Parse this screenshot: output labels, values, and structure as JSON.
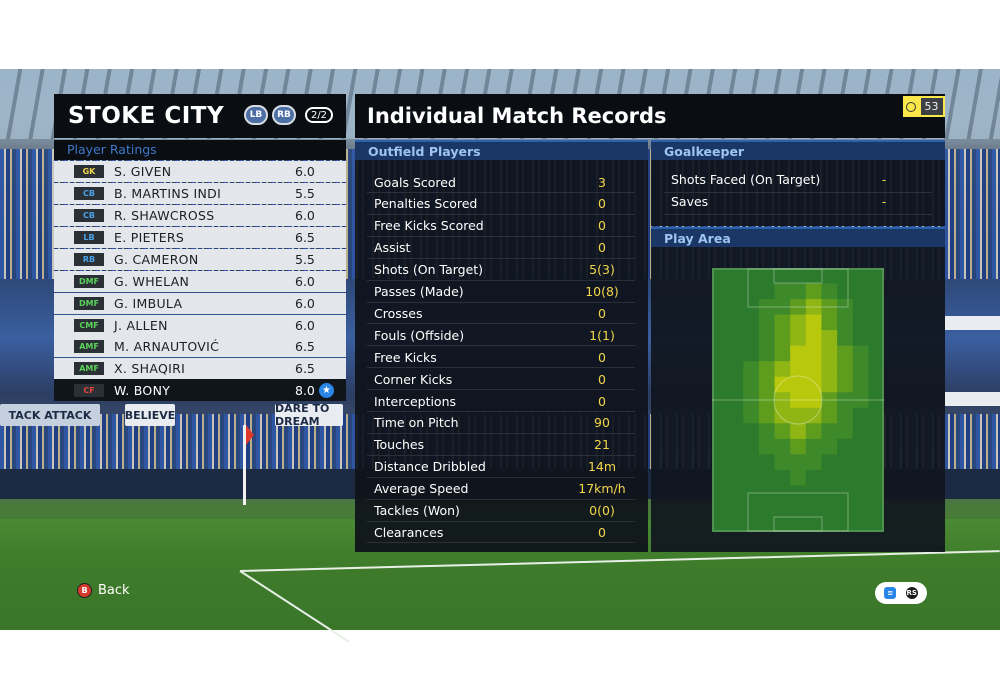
{
  "team": {
    "name": "STOKE CITY",
    "lb_button": "LB",
    "rb_button": "RB",
    "page": "2/2"
  },
  "ratings_header": "Player Ratings",
  "players": [
    {
      "pos": "GK",
      "pos_color": "#f2d64a",
      "name": "S. GIVEN",
      "rating": "6.0",
      "star": false
    },
    {
      "pos": "CB",
      "pos_color": "#4aa3e8",
      "name": "B. MARTINS INDI",
      "rating": "5.5",
      "star": false
    },
    {
      "pos": "CB",
      "pos_color": "#4aa3e8",
      "name": "R. SHAWCROSS",
      "rating": "6.0",
      "star": false
    },
    {
      "pos": "LB",
      "pos_color": "#4aa3e8",
      "name": "E. PIETERS",
      "rating": "6.5",
      "star": false
    },
    {
      "pos": "RB",
      "pos_color": "#4aa3e8",
      "name": "G. CAMERON",
      "rating": "5.5",
      "star": false
    },
    {
      "pos": "DMF",
      "pos_color": "#59d35a",
      "name": "G. WHELAN",
      "rating": "6.0",
      "star": false
    },
    {
      "pos": "DMF",
      "pos_color": "#59d35a",
      "name": "G. IMBULA",
      "rating": "6.0",
      "star": false
    },
    {
      "pos": "CMF",
      "pos_color": "#59d35a",
      "name": "J. ALLEN",
      "rating": "6.0",
      "star": false
    },
    {
      "pos": "AMF",
      "pos_color": "#59d35a",
      "name": "M. ARNAUTOVIĆ",
      "rating": "6.5",
      "star": false
    },
    {
      "pos": "AMF",
      "pos_color": "#59d35a",
      "name": "X. SHAQIRI",
      "rating": "6.5",
      "star": false
    },
    {
      "pos": "CF",
      "pos_color": "#e5473a",
      "name": "W. BONY",
      "rating": "8.0",
      "star": true
    }
  ],
  "title": "Individual Match Records",
  "timer": "53",
  "outfield": {
    "header": "Outfield Players",
    "stats": [
      {
        "label": "Goals Scored",
        "value": "3"
      },
      {
        "label": "Penalties Scored",
        "value": "0"
      },
      {
        "label": "Free Kicks Scored",
        "value": "0"
      },
      {
        "label": "Assist",
        "value": "0"
      },
      {
        "label": "Shots (On Target)",
        "value": "5(3)"
      },
      {
        "label": "Passes (Made)",
        "value": "10(8)"
      },
      {
        "label": "Crosses",
        "value": "0"
      },
      {
        "label": "Fouls (Offside)",
        "value": "1(1)"
      },
      {
        "label": "Free Kicks",
        "value": "0"
      },
      {
        "label": "Corner Kicks",
        "value": "0"
      },
      {
        "label": "Interceptions",
        "value": "0"
      },
      {
        "label": "Time on Pitch",
        "value": "90"
      },
      {
        "label": "Touches",
        "value": "21"
      },
      {
        "label": "Distance Dribbled",
        "value": "14m"
      },
      {
        "label": "Average Speed",
        "value": "17km/h"
      },
      {
        "label": "Tackles (Won)",
        "value": "0(0)"
      },
      {
        "label": "Clearances",
        "value": "0"
      }
    ]
  },
  "goalkeeper": {
    "header": "Goalkeeper",
    "stats": [
      {
        "label": "Shots Faced (On Target)",
        "value": "-"
      },
      {
        "label": "Saves",
        "value": "-"
      }
    ]
  },
  "play_area": {
    "header": "Play Area"
  },
  "controls": {
    "back_label": "Back",
    "back_key": "B",
    "help_key": "RS"
  },
  "stadium": {
    "banners": [
      "TACK ATTACK",
      "BELIEVE",
      "DARE TO DREAM"
    ]
  }
}
